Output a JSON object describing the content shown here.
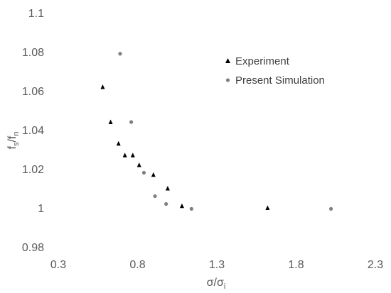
{
  "chart_data": {
    "type": "scatter",
    "xlabel_main": "σ/σ",
    "xlabel_sub": "i",
    "ylabel_f1": "f",
    "ylabel_sub1": "s",
    "ylabel_mid": "/f",
    "ylabel_sub2": "n",
    "xlim": [
      0.3,
      2.3
    ],
    "ylim": [
      0.98,
      1.1
    ],
    "x_ticks": [
      "0.3",
      "0.8",
      "1.3",
      "1.8",
      "2.3"
    ],
    "x_tick_values": [
      0.3,
      0.8,
      1.3,
      1.8,
      2.3
    ],
    "y_ticks": [
      "0.98",
      "1",
      "1.02",
      "1.04",
      "1.06",
      "1.08",
      "1.1"
    ],
    "y_tick_values": [
      0.98,
      1.0,
      1.02,
      1.04,
      1.06,
      1.08,
      1.1
    ],
    "grid": false,
    "legend_position": "top-right",
    "series": [
      {
        "name": "Experiment",
        "marker": "triangle",
        "color": "#000000",
        "points": [
          [
            0.58,
            1.062
          ],
          [
            0.63,
            1.044
          ],
          [
            0.68,
            1.033
          ],
          [
            0.72,
            1.027
          ],
          [
            0.77,
            1.027
          ],
          [
            0.81,
            1.022
          ],
          [
            0.9,
            1.017
          ],
          [
            0.99,
            1.01
          ],
          [
            1.08,
            1.001
          ],
          [
            1.62,
            1.0
          ]
        ]
      },
      {
        "name": "Present Simulation",
        "marker": "circle",
        "color": "#808080",
        "points": [
          [
            0.69,
            1.079
          ],
          [
            0.76,
            1.044
          ],
          [
            0.84,
            1.018
          ],
          [
            0.91,
            1.006
          ],
          [
            0.98,
            1.002
          ],
          [
            1.14,
            0.9995
          ],
          [
            2.02,
            0.9995
          ]
        ]
      }
    ]
  }
}
